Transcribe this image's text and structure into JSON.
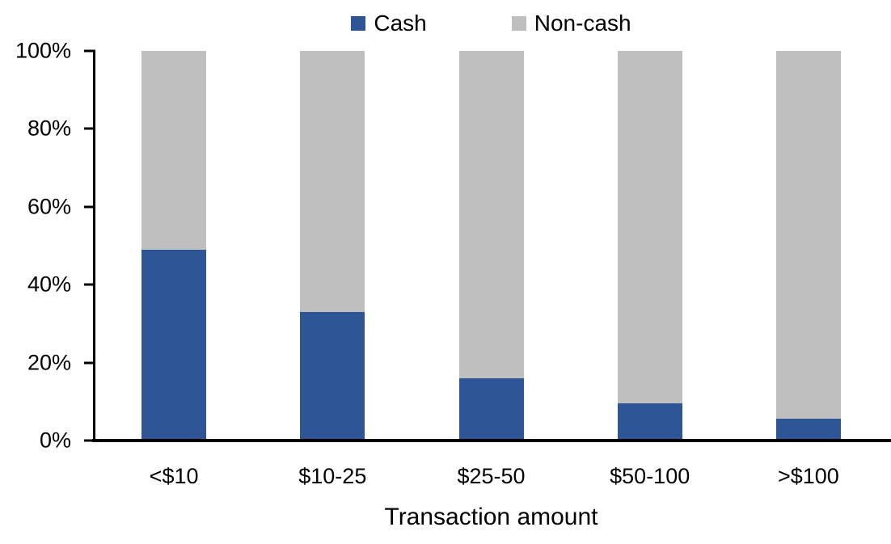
{
  "chart_data": {
    "type": "bar",
    "stacked": true,
    "percent_stacked": true,
    "title": "",
    "categories": [
      "<$10",
      "$10-25",
      "$25-50",
      "$50-100",
      ">$100"
    ],
    "series": [
      {
        "name": "Cash",
        "color": "#2E5596",
        "values": [
          49,
          33,
          16,
          9.5,
          5.5
        ]
      },
      {
        "name": "Non-cash",
        "color": "#BFBFBF",
        "values": [
          51,
          67,
          84,
          90.5,
          94.5
        ]
      }
    ],
    "xlabel": "Transaction amount",
    "ylabel": "",
    "ylim": [
      0,
      100
    ],
    "yticks": [
      {
        "value": 0,
        "label": "0%"
      },
      {
        "value": 20,
        "label": "20%"
      },
      {
        "value": 40,
        "label": "40%"
      },
      {
        "value": 60,
        "label": "60%"
      },
      {
        "value": 80,
        "label": "80%"
      },
      {
        "value": 100,
        "label": "100%"
      }
    ],
    "grid": false,
    "legend_position": "top-center",
    "axis_color": "#000000",
    "text_color": "#000000",
    "background_color": "#FFFFFF"
  }
}
